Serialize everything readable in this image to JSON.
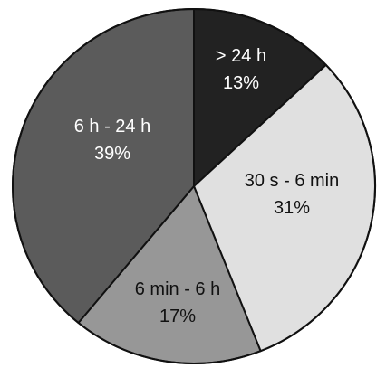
{
  "chart_data": {
    "type": "pie",
    "start_angle_deg": 0,
    "direction": "clockwise",
    "outline_color": "#111111",
    "slices": [
      {
        "name": "> 24 h",
        "percent_label": "13%",
        "value": 13,
        "color": "#222222",
        "text_color": "#ffffff"
      },
      {
        "name": "30 s - 6 min",
        "percent_label": "31%",
        "value": 31,
        "color": "#e0e0e0",
        "text_color": "#111111"
      },
      {
        "name": "6 min - 6 h",
        "percent_label": "17%",
        "value": 17,
        "color": "#979797",
        "text_color": "#111111"
      },
      {
        "name": "6 h - 24 h",
        "percent_label": "39%",
        "value": 39,
        "color": "#5b5b5b",
        "text_color": "#ffffff"
      }
    ]
  }
}
